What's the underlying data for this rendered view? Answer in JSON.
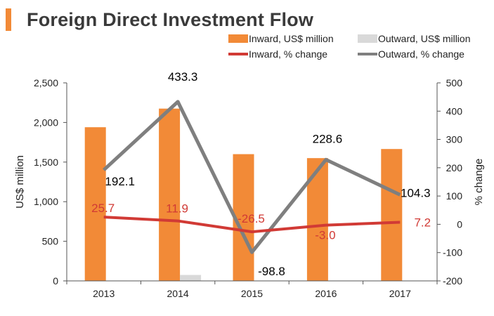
{
  "chart_data": {
    "type": "bar",
    "title": "Foreign Direct Investment Flow",
    "categories": [
      "2013",
      "2014",
      "2015",
      "2016",
      "2017"
    ],
    "y_left": {
      "label": "US$ million",
      "lim": [
        0,
        2500
      ],
      "ticks": [
        "0",
        "500",
        "1,000",
        "1,500",
        "2,000",
        "2,500"
      ],
      "tick_values": [
        0,
        500,
        1000,
        1500,
        2000,
        2500
      ]
    },
    "y_right": {
      "label": "% change",
      "lim": [
        -200,
        500
      ],
      "ticks": [
        "-200",
        "-100",
        "0",
        "100",
        "200",
        "300",
        "400",
        "500"
      ],
      "tick_values": [
        -200,
        -100,
        0,
        100,
        200,
        300,
        400,
        500
      ]
    },
    "series": [
      {
        "name": "Inward, US$ million",
        "kind": "bar",
        "axis": "left",
        "color": "#F28A37",
        "values": [
          1940,
          2175,
          1600,
          1550,
          1665
        ]
      },
      {
        "name": "Outward, US$ million",
        "kind": "bar",
        "axis": "left",
        "color": "#D9D9D9",
        "values": [
          5,
          75,
          0,
          0,
          0
        ]
      },
      {
        "name": "Inward, % change",
        "kind": "line",
        "axis": "right",
        "color": "#D13A35",
        "values": [
          25.7,
          11.9,
          -26.5,
          -3.0,
          7.2
        ],
        "labels": [
          "25.7",
          "11.9",
          "-26.5",
          "-3.0",
          "7.2"
        ]
      },
      {
        "name": "Outward, % change",
        "kind": "line",
        "axis": "right",
        "color": "#7F7F7F",
        "values": [
          192.1,
          433.3,
          -98.8,
          228.6,
          104.3
        ],
        "labels": [
          "192.1",
          "433.3",
          "-98.8",
          "228.6",
          "104.3"
        ]
      }
    ],
    "legend_position": "top-right",
    "grid": false
  },
  "colors": {
    "title_accent": "#F28A37",
    "axis": "#555555"
  }
}
